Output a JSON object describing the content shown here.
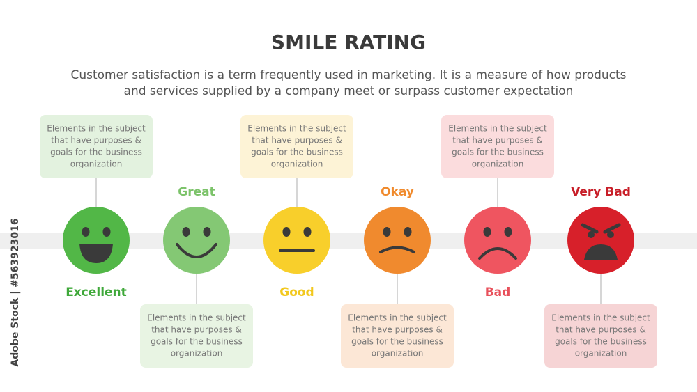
{
  "header": {
    "title": "SMILE RATING",
    "subtitle_lines": [
      "Customer satisfaction is a term frequently used in marketing. It is a measure of how products",
      "and services supplied by a company meet or surpass customer expectation"
    ]
  },
  "watermark": "Adobe Stock | #563923016",
  "items": [
    {
      "label": "Excellent",
      "color": "#52b747",
      "label_color": "#3fa83a",
      "box_color": "#e3f2df",
      "description_lines": [
        "Elements in the subject",
        "that have purposes &",
        "goals for the business",
        "organization"
      ]
    },
    {
      "label": "Great",
      "color": "#84c874",
      "label_color": "#7cc36a",
      "box_color": "#e8f4e3",
      "description_lines": [
        "Elements in the subject",
        "that have purposes &",
        "goals for the business",
        "organization"
      ]
    },
    {
      "label": "Good",
      "color": "#f8cf2b",
      "label_color": "#f2c81e",
      "box_color": "#fdf3d6",
      "description_lines": [
        "Elements in the subject",
        "that have purposes &",
        "goals for the business",
        "organization"
      ]
    },
    {
      "label": "Okay",
      "color": "#f08a2e",
      "label_color": "#f08a2c",
      "box_color": "#fce7d6",
      "description_lines": [
        "Elements in the subject",
        "that have purposes &",
        "goals for the business",
        "organization"
      ]
    },
    {
      "label": "Bad",
      "color": "#ef5560",
      "label_color": "#e8505b",
      "box_color": "#fbdcdd",
      "description_lines": [
        "Elements in the subject",
        "that have purposes &",
        "goals for the business",
        "organization"
      ]
    },
    {
      "label": "Very Bad",
      "color": "#d7202a",
      "label_color": "#c81e28",
      "box_color": "#f6d4d5",
      "description_lines": [
        "Elements in the subject",
        "that have purposes &",
        "goals for the business",
        "organization"
      ]
    }
  ]
}
